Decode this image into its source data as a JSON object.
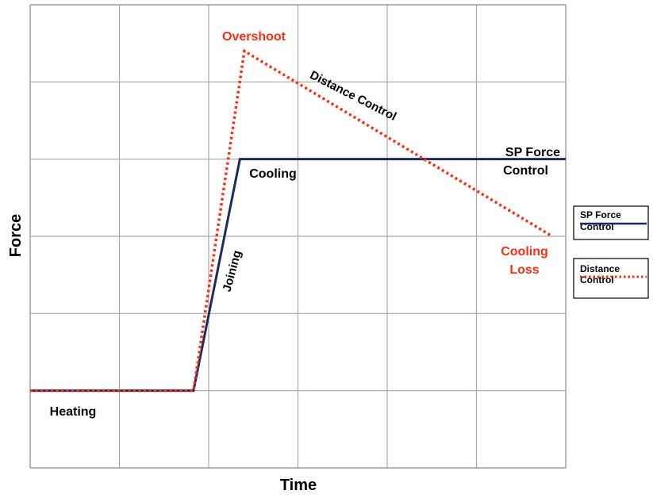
{
  "chart_data": {
    "type": "line",
    "title": "",
    "xlabel": "Time",
    "ylabel": "Force",
    "xlim": [
      0,
      6
    ],
    "ylim": [
      0,
      6
    ],
    "grid": true,
    "legend_position": "right",
    "series": [
      {
        "name": "SP Force Control",
        "color": "#1f2b5a",
        "style": "solid",
        "x": [
          0,
          1.83,
          2.35,
          6.0
        ],
        "y": [
          1.0,
          1.0,
          4.0,
          4.0
        ]
      },
      {
        "name": "Distance Control",
        "color": "#ff2a12",
        "style": "dotted",
        "x": [
          0,
          1.83,
          2.4,
          5.85
        ],
        "y": [
          1.0,
          1.0,
          5.4,
          3.0
        ]
      }
    ],
    "annotations": {
      "overshoot": "Overshoot",
      "distance_control": "Distance Control",
      "sp_force_1": "SP Force",
      "sp_force_2": "Control",
      "cooling": "Cooling",
      "joining": "Joining",
      "cooling_loss_1": "Cooling",
      "cooling_loss_2": "Loss",
      "heating": "Heating"
    },
    "legend": {
      "sp_line1": "SP Force",
      "sp_line2": "Control",
      "dc_line1": "Distance",
      "dc_line2": "Control"
    }
  }
}
